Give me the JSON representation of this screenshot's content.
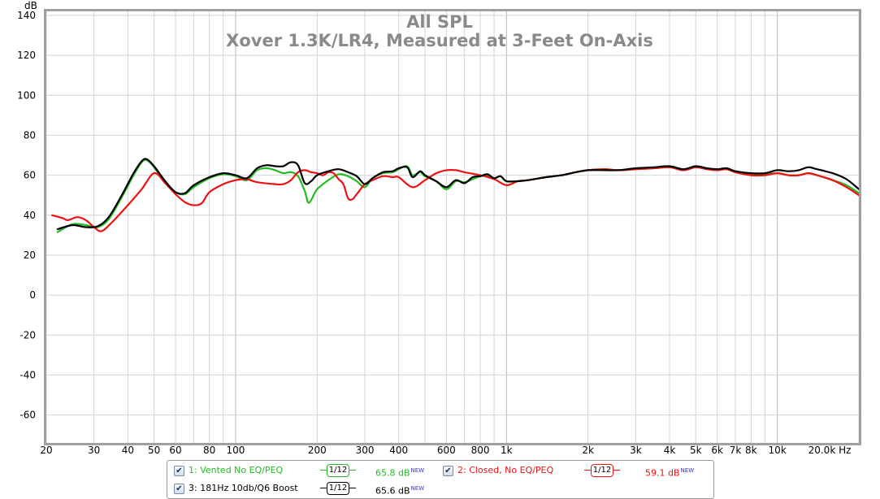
{
  "chart_data": {
    "type": "line",
    "title": "All SPL",
    "subtitle": "Xover 1.3K/LR4, Measured at 3-Feet On-Axis",
    "ylabel": "dB",
    "xunit": "Hz",
    "x_scale": "log",
    "xlim": [
      20,
      20000
    ],
    "ylim": [
      -74,
      142
    ],
    "grid": true,
    "y_ticks": [
      140,
      120,
      100,
      80,
      60,
      40,
      20,
      0,
      -20,
      -40,
      -60
    ],
    "x_ticks": [
      {
        "value": 20,
        "label": "20"
      },
      {
        "value": 30,
        "label": "30"
      },
      {
        "value": 40,
        "label": "40"
      },
      {
        "value": 50,
        "label": "50"
      },
      {
        "value": 60,
        "label": "60"
      },
      {
        "value": 80,
        "label": "80"
      },
      {
        "value": 100,
        "label": "100"
      },
      {
        "value": 200,
        "label": "200"
      },
      {
        "value": 300,
        "label": "300"
      },
      {
        "value": 400,
        "label": "400"
      },
      {
        "value": 600,
        "label": "600"
      },
      {
        "value": 800,
        "label": "800"
      },
      {
        "value": 1000,
        "label": "1k"
      },
      {
        "value": 2000,
        "label": "2k"
      },
      {
        "value": 3000,
        "label": "3k"
      },
      {
        "value": 4000,
        "label": "4k"
      },
      {
        "value": 5000,
        "label": "5k"
      },
      {
        "value": 6000,
        "label": "6k"
      },
      {
        "value": 7000,
        "label": "7k"
      },
      {
        "value": 8000,
        "label": "8k"
      },
      {
        "value": 10000,
        "label": "10k"
      },
      {
        "value": 20000,
        "label": "20.0k Hz"
      }
    ],
    "series": [
      {
        "name": "1: Vented No EQ/PEQ",
        "color": "#22bb22",
        "points": [
          [
            22,
            31.5
          ],
          [
            25,
            35.5
          ],
          [
            28,
            35
          ],
          [
            31,
            34
          ],
          [
            34,
            38
          ],
          [
            38,
            49
          ],
          [
            42,
            60
          ],
          [
            45,
            66.5
          ],
          [
            47,
            67.5
          ],
          [
            50,
            64
          ],
          [
            55,
            56
          ],
          [
            60,
            51.5
          ],
          [
            65,
            50.5
          ],
          [
            70,
            54
          ],
          [
            80,
            58.5
          ],
          [
            90,
            60.5
          ],
          [
            100,
            59.5
          ],
          [
            110,
            57.5
          ],
          [
            120,
            62.5
          ],
          [
            130,
            63.5
          ],
          [
            140,
            62.5
          ],
          [
            150,
            61
          ],
          [
            160,
            61.5
          ],
          [
            170,
            59.5
          ],
          [
            180,
            52
          ],
          [
            185,
            46.5
          ],
          [
            190,
            47.5
          ],
          [
            200,
            53
          ],
          [
            220,
            57.5
          ],
          [
            240,
            60.5
          ],
          [
            260,
            59.5
          ],
          [
            280,
            57
          ],
          [
            300,
            54
          ],
          [
            320,
            58.5
          ],
          [
            350,
            61
          ],
          [
            380,
            61.5
          ],
          [
            400,
            63
          ],
          [
            430,
            64.5
          ],
          [
            450,
            60
          ],
          [
            480,
            61.5
          ],
          [
            500,
            59.5
          ],
          [
            550,
            57
          ],
          [
            600,
            53
          ],
          [
            650,
            57
          ],
          [
            700,
            56.5
          ],
          [
            750,
            58
          ],
          [
            800,
            59.5
          ],
          [
            850,
            60
          ],
          [
            900,
            58.5
          ],
          [
            950,
            59.5
          ],
          [
            1000,
            57
          ],
          [
            1100,
            57
          ],
          [
            1200,
            57.5
          ],
          [
            1400,
            59
          ],
          [
            1600,
            60
          ],
          [
            1800,
            61.5
          ],
          [
            2000,
            62.5
          ],
          [
            2300,
            63
          ],
          [
            2600,
            62.5
          ],
          [
            3000,
            63
          ],
          [
            3500,
            63.5
          ],
          [
            4000,
            64
          ],
          [
            4500,
            62.5
          ],
          [
            5000,
            64
          ],
          [
            5500,
            63
          ],
          [
            6000,
            62.5
          ],
          [
            6500,
            63
          ],
          [
            7000,
            61.5
          ],
          [
            8000,
            60.5
          ],
          [
            9000,
            60.5
          ],
          [
            10000,
            61
          ],
          [
            11000,
            60
          ],
          [
            12000,
            60
          ],
          [
            13000,
            61
          ],
          [
            14000,
            60
          ],
          [
            16000,
            57.5
          ],
          [
            18000,
            55
          ],
          [
            20000,
            51
          ]
        ]
      },
      {
        "name": "2: Closed, No EQ/PEQ",
        "color": "#ee1111",
        "points": [
          [
            21,
            40
          ],
          [
            23,
            38.5
          ],
          [
            24,
            37.5
          ],
          [
            26,
            39
          ],
          [
            28,
            37.5
          ],
          [
            30,
            34
          ],
          [
            32,
            32
          ],
          [
            35,
            36.5
          ],
          [
            40,
            45
          ],
          [
            45,
            53
          ],
          [
            50,
            61
          ],
          [
            55,
            56
          ],
          [
            60,
            50.5
          ],
          [
            65,
            46.5
          ],
          [
            70,
            45
          ],
          [
            75,
            46
          ],
          [
            80,
            51.5
          ],
          [
            90,
            55.5
          ],
          [
            100,
            57.5
          ],
          [
            110,
            58
          ],
          [
            120,
            56.5
          ],
          [
            140,
            55.5
          ],
          [
            150,
            55.5
          ],
          [
            160,
            57.5
          ],
          [
            170,
            61.5
          ],
          [
            180,
            62.5
          ],
          [
            190,
            61.5
          ],
          [
            200,
            61
          ],
          [
            210,
            60
          ],
          [
            220,
            61.5
          ],
          [
            230,
            61
          ],
          [
            240,
            58
          ],
          [
            250,
            55.5
          ],
          [
            260,
            48.5
          ],
          [
            270,
            48
          ],
          [
            280,
            50.5
          ],
          [
            300,
            55.5
          ],
          [
            320,
            57.5
          ],
          [
            350,
            59.5
          ],
          [
            380,
            59
          ],
          [
            400,
            59
          ],
          [
            450,
            54
          ],
          [
            500,
            57.5
          ],
          [
            550,
            61
          ],
          [
            600,
            62.5
          ],
          [
            650,
            62.5
          ],
          [
            700,
            61.5
          ],
          [
            800,
            60
          ],
          [
            900,
            58
          ],
          [
            1000,
            55
          ],
          [
            1100,
            57
          ],
          [
            1200,
            57.5
          ],
          [
            1400,
            59
          ],
          [
            1600,
            60
          ],
          [
            1800,
            61.5
          ],
          [
            2000,
            62.5
          ],
          [
            2300,
            63
          ],
          [
            2600,
            62.5
          ],
          [
            3000,
            63
          ],
          [
            3500,
            63.5
          ],
          [
            4000,
            64
          ],
          [
            4500,
            62.5
          ],
          [
            5000,
            64
          ],
          [
            5500,
            63
          ],
          [
            6000,
            62.5
          ],
          [
            6500,
            63
          ],
          [
            7000,
            61.5
          ],
          [
            8000,
            60
          ],
          [
            9000,
            60
          ],
          [
            10000,
            61
          ],
          [
            11000,
            60
          ],
          [
            12000,
            60
          ],
          [
            13000,
            61
          ],
          [
            14000,
            60
          ],
          [
            16000,
            57.5
          ],
          [
            18000,
            54
          ],
          [
            20000,
            50
          ]
        ]
      },
      {
        "name": "3: 181Hz 10db/Q6 Boost",
        "color": "#000000",
        "points": [
          [
            22,
            33
          ],
          [
            25,
            35
          ],
          [
            28,
            34
          ],
          [
            31,
            34.5
          ],
          [
            34,
            39
          ],
          [
            38,
            50
          ],
          [
            42,
            61
          ],
          [
            45,
            67
          ],
          [
            47,
            68
          ],
          [
            50,
            64.5
          ],
          [
            55,
            57
          ],
          [
            60,
            51.5
          ],
          [
            65,
            51
          ],
          [
            70,
            55
          ],
          [
            80,
            59
          ],
          [
            90,
            61
          ],
          [
            100,
            60
          ],
          [
            110,
            58.5
          ],
          [
            120,
            63.5
          ],
          [
            130,
            65
          ],
          [
            140,
            64.5
          ],
          [
            150,
            64.5
          ],
          [
            160,
            66.5
          ],
          [
            170,
            65
          ],
          [
            180,
            56
          ],
          [
            190,
            57
          ],
          [
            200,
            60
          ],
          [
            220,
            62
          ],
          [
            240,
            63
          ],
          [
            260,
            61.5
          ],
          [
            280,
            59.5
          ],
          [
            300,
            55.5
          ],
          [
            320,
            58.5
          ],
          [
            350,
            61.5
          ],
          [
            380,
            62
          ],
          [
            400,
            63.5
          ],
          [
            430,
            64
          ],
          [
            450,
            59
          ],
          [
            480,
            62
          ],
          [
            500,
            60
          ],
          [
            550,
            57
          ],
          [
            600,
            54
          ],
          [
            650,
            57.5
          ],
          [
            700,
            56
          ],
          [
            750,
            59
          ],
          [
            800,
            59.5
          ],
          [
            850,
            60.5
          ],
          [
            900,
            58.5
          ],
          [
            950,
            59.5
          ],
          [
            1000,
            57
          ],
          [
            1100,
            57
          ],
          [
            1200,
            57.5
          ],
          [
            1400,
            59
          ],
          [
            1600,
            60
          ],
          [
            1800,
            61.5
          ],
          [
            2000,
            62.5
          ],
          [
            2300,
            62.5
          ],
          [
            2600,
            62.5
          ],
          [
            3000,
            63.5
          ],
          [
            3500,
            64
          ],
          [
            4000,
            64.5
          ],
          [
            4500,
            63
          ],
          [
            5000,
            64.5
          ],
          [
            5500,
            63.5
          ],
          [
            6000,
            63
          ],
          [
            6500,
            63.5
          ],
          [
            7000,
            62
          ],
          [
            8000,
            61
          ],
          [
            9000,
            61
          ],
          [
            10000,
            62.5
          ],
          [
            11000,
            62
          ],
          [
            12000,
            62.5
          ],
          [
            13000,
            64
          ],
          [
            14000,
            63
          ],
          [
            16000,
            61
          ],
          [
            18000,
            58
          ],
          [
            20000,
            53
          ]
        ]
      }
    ]
  },
  "legend": {
    "items": [
      {
        "label": "1: Vented No EQ/PEQ",
        "smoothing_num": "1",
        "smoothing_den": "12",
        "value": "65.8 dB",
        "badge": "NEW",
        "color": "#22bb22",
        "checked": true
      },
      {
        "label": "2: Closed, No EQ/PEQ",
        "smoothing_num": "1",
        "smoothing_den": "12",
        "value": "59.1 dB",
        "badge": "NEW",
        "color": "#ee1111",
        "checked": true
      },
      {
        "label": "3: 181Hz 10db/Q6 Boost",
        "smoothing_num": "1",
        "smoothing_den": "12",
        "value": "65.6 dB",
        "badge": "NEW",
        "color": "#000000",
        "checked": true
      }
    ]
  }
}
